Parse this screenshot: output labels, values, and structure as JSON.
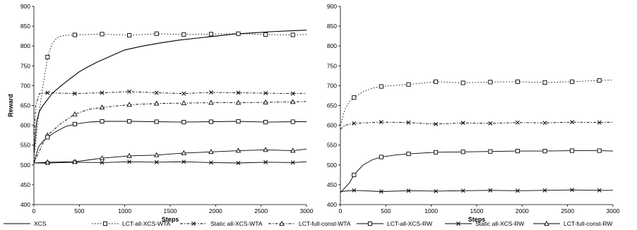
{
  "chart_data": [
    {
      "type": "line",
      "title": "",
      "xlabel": "Steps",
      "ylabel": "Reward",
      "xlim": [
        0,
        3000
      ],
      "ylim": [
        400,
        900
      ],
      "xticks": [
        0,
        500,
        1000,
        1500,
        2000,
        2500,
        3000
      ],
      "yticks": [
        400,
        450,
        500,
        550,
        600,
        650,
        700,
        750,
        800,
        850,
        900
      ],
      "grid": false,
      "series": [
        {
          "name": "XCS",
          "marker": "none",
          "dash": "solid",
          "x": [
            0,
            30,
            60,
            100,
            150,
            200,
            300,
            400,
            500,
            600,
            700,
            800,
            900,
            1000,
            1200,
            1400,
            1600,
            1800,
            2000,
            2200,
            2400,
            2600,
            2800,
            3000
          ],
          "y": [
            530,
            610,
            635,
            650,
            665,
            680,
            700,
            718,
            735,
            748,
            760,
            770,
            780,
            790,
            800,
            808,
            815,
            820,
            825,
            830,
            833,
            836,
            838,
            840
          ]
        },
        {
          "name": "LCT-all-XCS-WTA",
          "marker": "square",
          "dash": "dot",
          "x": [
            0,
            50,
            100,
            150,
            200,
            250,
            300,
            350,
            450,
            750,
            1050,
            1350,
            1650,
            1950,
            2250,
            2550,
            2850,
            3000
          ],
          "y": [
            510,
            620,
            700,
            772,
            805,
            820,
            825,
            827,
            828,
            830,
            827,
            831,
            829,
            830,
            831,
            829,
            828,
            829
          ]
        },
        {
          "name": "Static all-XCS-WTA",
          "marker": "x",
          "dash": "dashdot",
          "x": [
            0,
            20,
            60,
            150,
            450,
            750,
            1050,
            1350,
            1650,
            1950,
            2250,
            2550,
            2850,
            3000
          ],
          "y": [
            560,
            650,
            680,
            682,
            680,
            682,
            685,
            682,
            680,
            683,
            682,
            681,
            680,
            681
          ]
        },
        {
          "name": "LCT-full-const-WTA",
          "marker": "triangle",
          "dash": "dashdot",
          "x": [
            0,
            100,
            150,
            300,
            450,
            600,
            750,
            1050,
            1350,
            1650,
            1950,
            2250,
            2550,
            2850,
            3000
          ],
          "y": [
            505,
            555,
            575,
            605,
            628,
            640,
            645,
            652,
            655,
            656,
            657,
            657,
            658,
            659,
            660
          ]
        },
        {
          "name": "LCT-all-XCS-RW",
          "marker": "square",
          "dash": "solid",
          "x": [
            0,
            50,
            100,
            150,
            250,
            350,
            450,
            600,
            750,
            1050,
            1350,
            1650,
            1950,
            2250,
            2550,
            2850,
            3000
          ],
          "y": [
            505,
            545,
            560,
            570,
            585,
            597,
            603,
            608,
            610,
            610,
            609,
            608,
            609,
            610,
            608,
            609,
            609
          ]
        },
        {
          "name": "Static all-XCS-RW",
          "marker": "x",
          "dash": "solid",
          "x": [
            0,
            150,
            450,
            750,
            1050,
            1350,
            1650,
            1950,
            2250,
            2550,
            2850,
            3000
          ],
          "y": [
            505,
            505,
            507,
            506,
            508,
            507,
            508,
            506,
            505,
            507,
            506,
            508
          ]
        },
        {
          "name": "LCT-full-const-RW",
          "marker": "triangle",
          "dash": "solid",
          "x": [
            0,
            150,
            450,
            750,
            1050,
            1350,
            1650,
            1950,
            2250,
            2550,
            2850,
            3000
          ],
          "y": [
            505,
            507,
            508,
            517,
            523,
            525,
            530,
            533,
            536,
            538,
            536,
            540
          ]
        }
      ]
    },
    {
      "type": "line",
      "title": "",
      "xlabel": "Steps",
      "ylabel": "",
      "xlim": [
        0,
        3000
      ],
      "ylim": [
        400,
        900
      ],
      "xticks": [
        0,
        500,
        1000,
        1500,
        2000,
        2500,
        3000
      ],
      "yticks": [
        400,
        450,
        500,
        550,
        600,
        650,
        700,
        750,
        800,
        850,
        900
      ],
      "grid": false,
      "series": [
        {
          "name": "LCT-all-XCS-WTA",
          "marker": "square",
          "dash": "dot",
          "x": [
            0,
            50,
            100,
            150,
            250,
            350,
            450,
            750,
            1050,
            1350,
            1650,
            1950,
            2250,
            2550,
            2850,
            3000
          ],
          "y": [
            600,
            640,
            660,
            670,
            685,
            693,
            698,
            703,
            710,
            707,
            709,
            710,
            708,
            710,
            713,
            714
          ]
        },
        {
          "name": "Static all-XCS-WTA",
          "marker": "x",
          "dash": "dashdot",
          "x": [
            0,
            50,
            150,
            450,
            750,
            1050,
            1350,
            1650,
            1950,
            2250,
            2550,
            2850,
            3000
          ],
          "y": [
            590,
            600,
            605,
            608,
            607,
            603,
            606,
            605,
            607,
            606,
            608,
            607,
            608
          ]
        },
        {
          "name": "LCT-all-XCS-RW",
          "marker": "square",
          "dash": "solid",
          "x": [
            0,
            100,
            150,
            250,
            350,
            450,
            600,
            750,
            1050,
            1350,
            1650,
            1950,
            2250,
            2550,
            2850,
            3000
          ],
          "y": [
            430,
            455,
            475,
            500,
            513,
            520,
            525,
            528,
            532,
            533,
            534,
            535,
            535,
            536,
            536,
            535
          ]
        },
        {
          "name": "Static all-XCS-RW",
          "marker": "x",
          "dash": "solid",
          "x": [
            0,
            150,
            450,
            750,
            1050,
            1350,
            1650,
            1950,
            2250,
            2550,
            2850,
            3000
          ],
          "y": [
            433,
            436,
            433,
            435,
            434,
            435,
            436,
            435,
            436,
            437,
            436,
            436
          ]
        }
      ]
    }
  ],
  "legend": {
    "placement": "bottom",
    "items": [
      {
        "label": "XCS",
        "marker": "none",
        "dash": "solid"
      },
      {
        "label": "LCT-all-XCS-WTA",
        "marker": "square",
        "dash": "dot"
      },
      {
        "label": "Static all-XCS-WTA",
        "marker": "x",
        "dash": "dashdot"
      },
      {
        "label": "LCT-full-const-WTA",
        "marker": "triangle",
        "dash": "dashdot"
      },
      {
        "label": "LCT-all-XCS-RW",
        "marker": "square",
        "dash": "solid"
      },
      {
        "label": "Static all-XCS-RW",
        "marker": "x",
        "dash": "solid"
      },
      {
        "label": "LCT-full-const-RW",
        "marker": "triangle",
        "dash": "solid"
      }
    ]
  },
  "colors": {
    "line": "#000000",
    "text": "#000000",
    "background": "#ffffff"
  }
}
